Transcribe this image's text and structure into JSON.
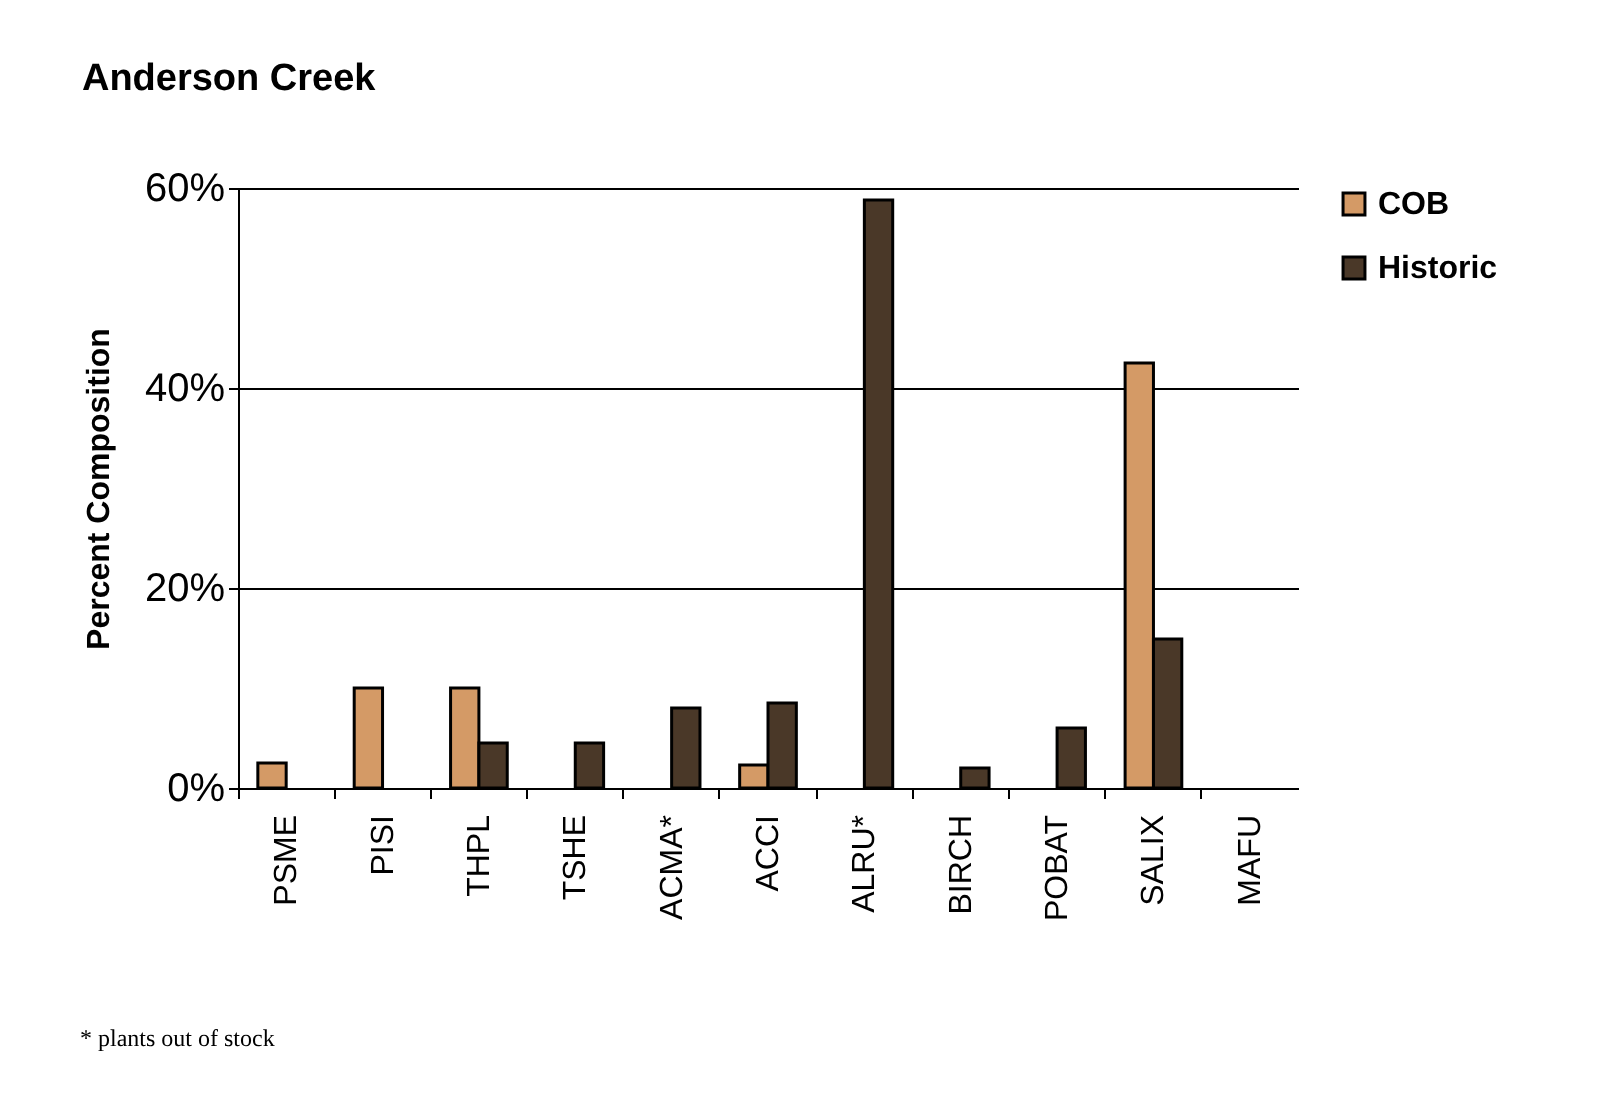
{
  "chart_data": {
    "type": "bar",
    "title": "Anderson Creek",
    "ylabel": "Percent Composition",
    "categories": [
      "PSME",
      "PISI",
      "THPL",
      "TSHE",
      "ACMA*",
      "ACCI",
      "ALRU*",
      "BIRCH",
      "POBAT",
      "SALIX",
      "MAFU"
    ],
    "series": [
      {
        "name": "COB",
        "color": "#d49a66",
        "values": [
          2.5,
          10,
          10,
          null,
          null,
          2.3,
          null,
          null,
          null,
          42.5,
          null
        ]
      },
      {
        "name": "Historic",
        "color": "#4a3828",
        "values": [
          null,
          null,
          4.5,
          4.5,
          8,
          8.5,
          58.8,
          2,
          6,
          14.9,
          null
        ]
      }
    ],
    "ylim": [
      0,
      60
    ],
    "yticks": [
      {
        "value": 0,
        "label": "0%"
      },
      {
        "value": 20,
        "label": "20%"
      },
      {
        "value": 40,
        "label": "40%"
      },
      {
        "value": 60,
        "label": "60%"
      }
    ],
    "grid": "y",
    "legend": "right",
    "annotations": [
      "* plants out of stock"
    ]
  }
}
